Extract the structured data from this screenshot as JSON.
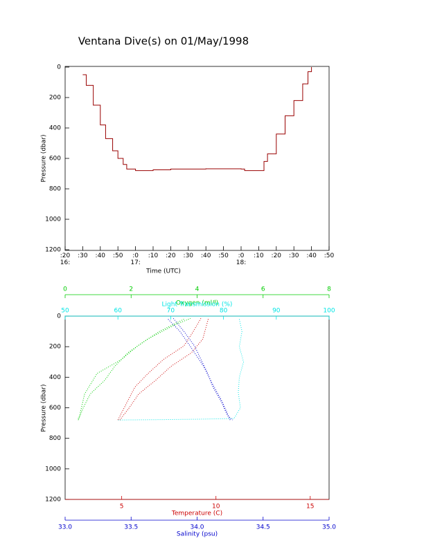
{
  "chart_data": [
    {
      "type": "line",
      "title": "Ventana Dive(s) on 01/May/1998",
      "xlabel": "Time (UTC)",
      "ylabel": "Pressure (dbar)",
      "color": "#990000",
      "y_reversed": true,
      "x": [
        "16:30",
        "16:32",
        "16:36",
        "16:40",
        "16:43",
        "16:47",
        "16:50",
        "16:53",
        "16:55",
        "17:00",
        "17:10",
        "17:20",
        "17:40",
        "18:00",
        "18:02",
        "18:12",
        "18:13",
        "18:15",
        "18:20",
        "18:25",
        "18:30",
        "18:35",
        "18:38",
        "18:40"
      ],
      "values": [
        50,
        120,
        250,
        380,
        470,
        550,
        600,
        640,
        670,
        680,
        675,
        670,
        668,
        670,
        680,
        680,
        620,
        570,
        440,
        320,
        220,
        110,
        30,
        0
      ],
      "xlim": [
        "16:20",
        "18:50"
      ],
      "xticks": [
        {
          "value": "16:20",
          "label": ":20\n16:"
        },
        {
          "value": "16:30",
          "label": ":30"
        },
        {
          "value": "16:40",
          "label": ":40"
        },
        {
          "value": "16:50",
          "label": ":50"
        },
        {
          "value": "17:00",
          "label": ":0\n17:"
        },
        {
          "value": "17:10",
          "label": ":10"
        },
        {
          "value": "17:20",
          "label": ":20"
        },
        {
          "value": "17:30",
          "label": ":30"
        },
        {
          "value": "17:40",
          "label": ":40"
        },
        {
          "value": "17:50",
          "label": ":50"
        },
        {
          "value": "18:00",
          "label": ":0\n18:"
        },
        {
          "value": "18:10",
          "label": ":10"
        },
        {
          "value": "18:20",
          "label": ":20"
        },
        {
          "value": "18:30",
          "label": ":30"
        },
        {
          "value": "18:40",
          "label": ":40"
        },
        {
          "value": "18:50",
          "label": ":50"
        }
      ],
      "ylim": [
        0,
        1200
      ],
      "yticks": [
        0,
        200,
        400,
        600,
        800,
        1000,
        1200
      ]
    },
    {
      "type": "scatter",
      "ylabel": "Pressure (dbar)",
      "y_reversed": true,
      "ylim": [
        0,
        1200
      ],
      "yticks": [
        0,
        200,
        400,
        600,
        800,
        1000,
        1200
      ],
      "axes": [
        {
          "label": "Oxygen (ml/l)",
          "color": "#00cc00",
          "position": "top",
          "lim": [
            0,
            8
          ],
          "ticks": [
            0,
            2,
            4,
            6,
            8
          ]
        },
        {
          "label": "Light Transmission (%)",
          "color": "#00e5e5",
          "position": "top",
          "lim": [
            50,
            100
          ],
          "ticks": [
            50,
            60,
            70,
            80,
            90,
            100
          ]
        },
        {
          "label": "Temperature (C)",
          "color": "#cc0000",
          "position": "bottom",
          "lim": [
            2,
            16
          ],
          "ticks": [
            5,
            10,
            15
          ]
        },
        {
          "label": "Salinity (psu)",
          "color": "#0000cc",
          "position": "bottom",
          "lim": [
            33,
            35
          ],
          "ticks": [
            {
              "value": 33,
              "label": "33.0"
            },
            33.5,
            {
              "value": 34,
              "label": "34.0"
            },
            34.5,
            {
              "value": 35,
              "label": "35.0"
            }
          ]
        }
      ],
      "series": [
        {
          "axis": 0,
          "pressure": [
            20,
            100,
            195,
            285,
            375,
            510,
            650,
            680
          ],
          "values": [
            3.6,
            2.86,
            2.2,
            1.7,
            0.97,
            0.59,
            0.44,
            0.38
          ]
        },
        {
          "axis": 0,
          "pressure": [
            680,
            600,
            510,
            420,
            330,
            240,
            150,
            60,
            15
          ],
          "values": [
            0.4,
            0.55,
            0.76,
            1.2,
            1.5,
            1.9,
            2.5,
            3.3,
            3.8
          ]
        },
        {
          "axis": 1,
          "pressure": [
            20,
            100,
            200,
            300,
            400,
            500,
            600,
            670,
            675,
            678,
            680
          ],
          "values": [
            83,
            83.5,
            83,
            83.8,
            83,
            82.8,
            83.2,
            82,
            75,
            67,
            60
          ]
        },
        {
          "axis": 2,
          "pressure": [
            15,
            100,
            195,
            285,
            375,
            465,
            560,
            680
          ],
          "values": [
            9.2,
            8.8,
            8.3,
            7.2,
            6.4,
            5.7,
            5.3,
            4.8
          ]
        },
        {
          "axis": 2,
          "pressure": [
            680,
            600,
            510,
            420,
            330,
            240,
            150,
            60,
            15
          ],
          "values": [
            4.9,
            5.4,
            5.9,
            6.8,
            7.6,
            8.7,
            9.3,
            9.5,
            9.6
          ]
        },
        {
          "axis": 3,
          "pressure": [
            15,
            100,
            195,
            285,
            375,
            465,
            555,
            650,
            680
          ],
          "values": [
            33.82,
            33.9,
            33.98,
            34.03,
            34.08,
            34.12,
            34.18,
            34.23,
            34.27
          ]
        },
        {
          "axis": 3,
          "pressure": [
            680,
            560,
            450,
            330,
            200,
            100,
            20
          ],
          "values": [
            34.25,
            34.19,
            34.12,
            34.05,
            33.95,
            33.87,
            33.78
          ]
        }
      ]
    }
  ]
}
